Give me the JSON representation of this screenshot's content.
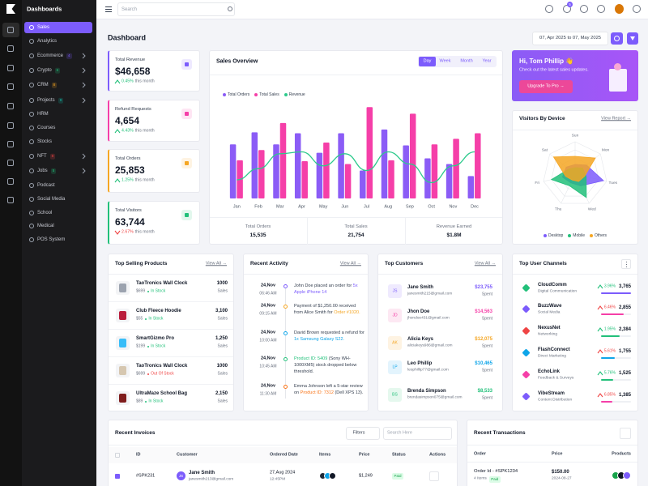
{
  "sidebar": {
    "brand": "Dashboards",
    "items": [
      {
        "label": "Sales",
        "active": true
      },
      {
        "label": "Analytics"
      },
      {
        "label": "Ecommerce",
        "badge": "4",
        "badge_color": "#7c5cfc",
        "submenu": true
      },
      {
        "label": "Crypto",
        "badge": "6",
        "badge_color": "#22c07a",
        "submenu": true
      },
      {
        "label": "CRM",
        "badge": "8",
        "badge_color": "#f5a623",
        "submenu": true
      },
      {
        "label": "Projects",
        "badge": "9",
        "badge_color": "#14b8a6",
        "submenu": true
      },
      {
        "label": "HRM"
      },
      {
        "label": "Courses"
      },
      {
        "label": "Stocks"
      },
      {
        "label": "NFT",
        "badge": "8",
        "badge_color": "#ef4444",
        "submenu": true
      },
      {
        "label": "Jobs",
        "badge": "5",
        "badge_color": "#22c07a",
        "submenu": true
      },
      {
        "label": "Podcast"
      },
      {
        "label": "Social Media"
      },
      {
        "label": "School"
      },
      {
        "label": "Medical"
      },
      {
        "label": "POS System"
      }
    ]
  },
  "header": {
    "search": "Search",
    "cart_badge": "5"
  },
  "page_title": "Dashboard",
  "date_range": "07, Apr 2025 to 07, May 2025",
  "stats": [
    {
      "label": "Total Revenue",
      "value": "$46,658",
      "change": "0.45%",
      "period": "this month",
      "trend": "up",
      "color": "#7c5cfc"
    },
    {
      "label": "Refund Requests",
      "value": "4,654",
      "change": "4.43%",
      "period": "this month",
      "trend": "up",
      "color": "#f53fa8"
    },
    {
      "label": "Total Orders",
      "value": "25,853",
      "change": "1.25%",
      "period": "this month",
      "trend": "up",
      "color": "#f5a623"
    },
    {
      "label": "Total Visitors",
      "value": "63,744",
      "change": "2.67%",
      "period": "this month",
      "trend": "down",
      "color": "#22c07a"
    }
  ],
  "sales_overview": {
    "tabs": [
      "Day",
      "Week",
      "Month",
      "Year"
    ],
    "summary": [
      {
        "label": "Total Orders",
        "value": "15,535"
      },
      {
        "label": "Total Sales",
        "value": "21,754"
      },
      {
        "label": "Revenue Earned",
        "value": "$1.8M"
      }
    ]
  },
  "chart_data": [
    {
      "type": "bar",
      "title": "Sales Overview",
      "categories": [
        "Jan",
        "Feb",
        "Mar",
        "Apr",
        "May",
        "Jun",
        "Jul",
        "Aug",
        "Sep",
        "Oct",
        "Nov",
        "Dec"
      ],
      "series": [
        {
          "name": "Total Orders",
          "color": "#8b5cf6",
          "values": [
            58,
            71,
            58,
            70,
            49,
            70,
            30,
            74,
            57,
            43,
            37,
            24
          ]
        },
        {
          "name": "Total Sales",
          "color": "#f53fa8",
          "values": [
            41,
            52,
            81,
            40,
            60,
            37,
            98,
            41,
            91,
            58,
            64,
            70
          ]
        },
        {
          "name": "Revenue",
          "color": "#2dca8c",
          "type": "line",
          "values": [
            20,
            32,
            48,
            50,
            35,
            48,
            30,
            50,
            37,
            17,
            35,
            50
          ]
        }
      ],
      "ylim": [
        0,
        100
      ]
    },
    {
      "type": "radar",
      "title": "Visitors By Device",
      "categories": [
        "Sun",
        "Mon",
        "Tues",
        "Wed",
        "Thu",
        "Fri",
        "Sat"
      ],
      "series": [
        {
          "name": "Desktop",
          "color": "#7c5cfc",
          "values": [
            30,
            45,
            90,
            40,
            30,
            40,
            35
          ]
        },
        {
          "name": "Mobile",
          "color": "#22c07a",
          "values": [
            20,
            30,
            35,
            80,
            40,
            75,
            25
          ]
        },
        {
          "name": "Others",
          "color": "#f5a623",
          "values": [
            55,
            80,
            30,
            25,
            20,
            30,
            85
          ]
        }
      ],
      "rlim": [
        0,
        100
      ]
    }
  ],
  "promo": {
    "title": "Hi, Tom Phillip 👋",
    "subtitle": "Check out the latest sales updates.",
    "button": "Upgrade To Pro →"
  },
  "visitors": {
    "link": "View Report →"
  },
  "top_products": {
    "title": "Top Selling Products",
    "link": "View All →",
    "items": [
      {
        "name": "TaoTronics Wall Clock",
        "price": "$699",
        "status": "In Stock",
        "in_stock": true,
        "sales": "1000",
        "sales_label": "Sales",
        "color": "#9ca3af"
      },
      {
        "name": "Club Fleece Hoodie",
        "price": "$55",
        "status": "In Stock",
        "in_stock": true,
        "sales": "3,100",
        "sales_label": "Sales",
        "color": "#b91c3c"
      },
      {
        "name": "SmartGizmo Pro",
        "price": "$199",
        "status": "In Stock",
        "in_stock": true,
        "sales": "1,250",
        "sales_label": "Sales",
        "color": "#38bdf8"
      },
      {
        "name": "TaoTronics Wall Clock",
        "price": "$699",
        "status": "Out Of Stock",
        "in_stock": false,
        "sales": "1000",
        "sales_label": "Sales",
        "color": "#d6c7b0"
      },
      {
        "name": "UltraMaze School Bag",
        "price": "$89",
        "status": "In Stock",
        "in_stock": true,
        "sales": "2,150",
        "sales_label": "Sales",
        "color": "#7f1d1d"
      }
    ]
  },
  "recent_activity": {
    "title": "Recent Activity",
    "link": "View All →",
    "items": [
      {
        "date": "24,Nov",
        "time": "06:46 AM",
        "color": "#7c5cfc",
        "parts": [
          {
            "text": "John Doe placed an order for "
          },
          {
            "text": "5x Apple iPhone 14",
            "color": "#7c5cfc"
          }
        ]
      },
      {
        "date": "24,Nov",
        "time": "09:15 AM",
        "color": "#f5a623",
        "parts": [
          {
            "text": "Payment of $1,250.00 received from Alice Smith for "
          },
          {
            "text": "Order #1020.",
            "color": "#f5a623"
          }
        ]
      },
      {
        "date": "24,Nov",
        "time": "10:00 AM",
        "color": "#0ea5e9",
        "parts": [
          {
            "text": "David Brown requested a refund for "
          },
          {
            "text": "1x Samsung Galaxy S22.",
            "color": "#0ea5e9"
          }
        ]
      },
      {
        "date": "24,Nov",
        "time": "10:45 AM",
        "color": "#22c07a",
        "parts": [
          {
            "text": "Product ID: 5409",
            "color": "#22c07a"
          },
          {
            "text": " (Sony WH-1000XM5) stock dropped below threshold."
          }
        ]
      },
      {
        "date": "24,Nov",
        "time": "11:30 AM",
        "color": "#f97316",
        "parts": [
          {
            "text": "Emma Johnson left a 5-star review on "
          },
          {
            "text": "Product ID: 7312",
            "color": "#f97316"
          },
          {
            "text": " (Dell XPS 13)."
          }
        ]
      }
    ]
  },
  "top_customers": {
    "title": "Top Customers",
    "link": "View All →",
    "items": [
      {
        "initials": "JS",
        "name": "Jane Smith",
        "email": "janesmith215@gmail.com",
        "amount": "$23,755",
        "amount_label": "Spent",
        "color": "#7c5cfc",
        "bg": "#efeafe"
      },
      {
        "initials": "JD",
        "name": "Jhon Doe",
        "email": "jhondoe431@gmail.com",
        "amount": "$14,563",
        "amount_label": "Spent",
        "color": "#f53fa8",
        "bg": "#fde8f3"
      },
      {
        "initials": "AK",
        "name": "Alicia Keys",
        "email": "aliciakeys986@gmail.com",
        "amount": "$12,075",
        "amount_label": "Spent",
        "color": "#f5a623",
        "bg": "#fef3e2"
      },
      {
        "initials": "LP",
        "name": "Leo Phillip",
        "email": "leophillip77@gmail.com",
        "amount": "$10,465",
        "amount_label": "Spent",
        "color": "#0ea5e9",
        "bg": "#e3f4fd"
      },
      {
        "initials": "BS",
        "name": "Brenda Simpson",
        "email": "brendasimpson075@gmail.com",
        "amount": "$8,533",
        "amount_label": "Spent",
        "color": "#22c07a",
        "bg": "#e5f8ee"
      }
    ]
  },
  "top_channels": {
    "title": "Top User Channels",
    "items": [
      {
        "name": "CloudComm",
        "desc": "Digital Communication",
        "change": "3.96%",
        "trend_color": "#22c07a",
        "value": "3,765",
        "color": "#7c5cfc",
        "icon": "#22c07a"
      },
      {
        "name": "BuzzWave",
        "desc": "Social Media",
        "change": "6.46%",
        "trend_color": "#ef4444",
        "value": "2,855",
        "color": "#f53fa8",
        "icon": "#7c5cfc"
      },
      {
        "name": "NexusNet",
        "desc": "Networking",
        "change": "1.95%",
        "trend_color": "#22c07a",
        "value": "2,384",
        "color": "#22c07a",
        "icon": "#ef4444"
      },
      {
        "name": "FlashConnect",
        "desc": "Direct Marketing",
        "change": "5.61%",
        "trend_color": "#ef4444",
        "value": "1,755",
        "color": "#0ea5e9",
        "icon": "#0ea5e9"
      },
      {
        "name": "EchoLink",
        "desc": "Feedback & Surveys",
        "change": "5.76%",
        "trend_color": "#22c07a",
        "value": "1,525",
        "color": "#22c07a",
        "icon": "#f53fa8"
      },
      {
        "name": "VibeStream",
        "desc": "Content Distribution",
        "change": "6.85%",
        "trend_color": "#ef4444",
        "value": "1,385",
        "color": "#f53fa8",
        "icon": "#7c5cfc"
      }
    ]
  },
  "recent_invoices": {
    "title": "Recent Invoices",
    "filters": "Filters",
    "search": "Search Here",
    "columns": [
      "ID",
      "Customer",
      "Ordered Date",
      "Items",
      "Price",
      "Status",
      "Actions"
    ],
    "rows": [
      {
        "id": "#SPK231",
        "initials": "JS",
        "name": "Jane Smith",
        "email": "janesmith213@gmail.com",
        "date": "27,Aug 2024",
        "time": "12:45PM",
        "price": "$1,249",
        "status": "Paid"
      }
    ]
  },
  "recent_transactions": {
    "title": "Recent Transactions",
    "columns": [
      "Order",
      "Price",
      "Products"
    ],
    "rows": [
      {
        "order": "Order Id - #SPK1234",
        "items": "4 Items",
        "status": "Paid",
        "price": "$150.00",
        "date": "2024-08-27"
      }
    ]
  }
}
